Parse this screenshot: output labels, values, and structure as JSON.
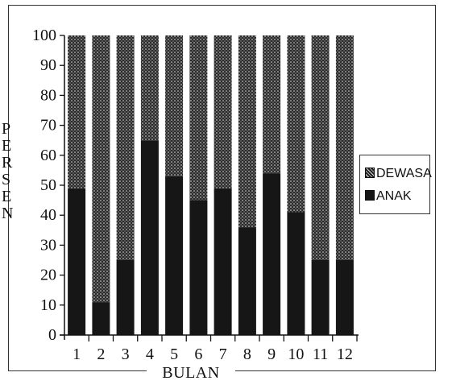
{
  "chart_data": {
    "type": "bar",
    "stacked": true,
    "percent_stacked": true,
    "title": "",
    "xlabel": "BULAN",
    "ylabel": "PERSEN",
    "ylim": [
      0,
      100
    ],
    "yticks": [
      "0",
      "10",
      "20",
      "30",
      "40",
      "50",
      "60",
      "70",
      "80",
      "90",
      "100"
    ],
    "categories": [
      "1",
      "2",
      "3",
      "4",
      "5",
      "6",
      "7",
      "8",
      "9",
      "10",
      "11",
      "12"
    ],
    "series": [
      {
        "name": "ANAK",
        "color": "#161616",
        "pattern": "solid",
        "values": [
          49,
          11,
          25,
          65,
          53,
          45,
          49,
          36,
          54,
          41,
          25,
          25
        ]
      },
      {
        "name": "DEWASA",
        "color": "#2a2a2a",
        "pattern": "dotted",
        "values": [
          51,
          89,
          75,
          35,
          47,
          55,
          51,
          64,
          46,
          59,
          75,
          75
        ]
      }
    ],
    "legend": {
      "position": "right",
      "items": [
        "DEWASA",
        "ANAK"
      ]
    },
    "grid": false
  }
}
